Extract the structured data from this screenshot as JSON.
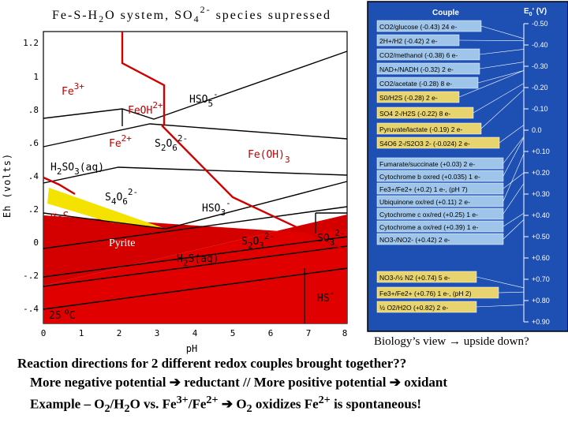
{
  "pourbaix": {
    "title": "Fe-S-H2O system, SO4 2- species supressed",
    "title_main": "Fe-S-H",
    "title_sub2": "2",
    "title_mid": "O system, SO",
    "title_sub4": "4",
    "title_sup": "2-",
    "title_end": " species supressed",
    "ylabel": "Eh (volts)",
    "xlabel": "pH",
    "y_ticks": [
      "1.2",
      "1",
      ".8",
      ".6",
      ".4",
      ".2",
      "0",
      "-.2",
      "-.4"
    ],
    "x_ticks": [
      "0",
      "1",
      "2",
      "3",
      "4",
      "5",
      "6",
      "7",
      "8"
    ],
    "temperature": "25 °C",
    "temp_num": "25",
    "temp_deg": "o",
    "temp_c": "C",
    "species": {
      "fe3": {
        "base": "Fe",
        "sup": "3+"
      },
      "feoh": {
        "base": "FeOH",
        "sup": "2+"
      },
      "hso5": {
        "base": "HSO",
        "sub": "5",
        "sup": "-"
      },
      "fe2": {
        "base": "Fe",
        "sup": "2+"
      },
      "s2o6": {
        "base": "S",
        "sub1": "2",
        "mid": "O",
        "sub2": "6",
        "sup": "2-"
      },
      "feoh3": {
        "base": "Fe(OH)",
        "sub": "3"
      },
      "h2so3": {
        "base": "H",
        "sub1": "2",
        "mid": "SO",
        "sub2": "3",
        "end": "(aq)"
      },
      "s4o6": {
        "base": "S",
        "sub1": "4",
        "mid": "O",
        "sub2": "6",
        "sup": "2-"
      },
      "hso3": {
        "base": "HSO",
        "sub": "3",
        "sup": "-"
      },
      "alphas8": {
        "base": "α-S",
        "sub": "8"
      },
      "pyrite": "Pyrite",
      "s2o3": {
        "base": "S",
        "sub1": "2",
        "mid": "O",
        "sub2": "3",
        "sup": "2-"
      },
      "so3": {
        "base": "SO",
        "sub": "3",
        "sup": "2-"
      },
      "h2s": {
        "base": "H",
        "sub1": "2",
        "end": "S(aq)"
      },
      "hs": {
        "base": "HS",
        "sup": "-"
      }
    }
  },
  "redox_table": {
    "header_couple": "Couple",
    "header_e": "E0' (V)",
    "header_e_base": "E",
    "header_e_sub": "0",
    "header_e_end": "' (V)",
    "couples": [
      "CO2/glucose (-0.43) 24 e-",
      "2H+/H2 (-0.42) 2 e-",
      "CO2/methanol (-0.38) 6 e-",
      "NAD+/NADH (-0.32) 2 e-",
      "CO2/acetate (-0.28) 8 e-",
      "S0/H2S (-0.28) 2 e-",
      "SO4 2-/H2S (-0.22) 8 e-",
      "Pyruvate/lactate (-0.19) 2 e-",
      "S4O6 2-/S2O3 2- (-0.024) 2 e-",
      "Fumarate/succinate (+0.03) 2 e-",
      "Cytochrome b oxred (+0.035) 1 e-",
      "Fe3+/Fe2+ (+0.2) 1 e-, (pH 7)",
      "Ubiquinone ox/red (+0.11) 2 e-",
      "Cytochrome c ox/red (+0.25) 1 e-",
      "Cytochrome a ox/red (+0.39) 1 e-",
      "NO3-/NO2- (+0.42) 2 e-",
      "NO3-/½ N2 (+0.74) 5 e-",
      "Fe3+/Fe2+ (+0.76) 1 e-, (pH 2)",
      "½ O2/H2O (+0.82) 2 e-"
    ],
    "scale": [
      "-0.50",
      "-0.40",
      "-0.30",
      "-0.20",
      "-0.10",
      "0.0",
      "+0.10",
      "+0.20",
      "+0.30",
      "+0.40",
      "+0.50",
      "+0.60",
      "+0.70",
      "+0.80",
      "+0.90"
    ],
    "note": "Biology’s view → upside down?"
  },
  "caption": {
    "line1": "Reaction directions for 2 different redox couples brought together??",
    "line2_a": "More negative potential ",
    "line2_b": " reductant // More positive potential ",
    "line2_c": " oxidant",
    "line3_a": "Example – O",
    "line3_b": "2",
    "line3_c": "/H",
    "line3_d": "2",
    "line3_e": "O vs. Fe",
    "line3_f": "3+",
    "line3_g": "/Fe",
    "line3_h": "2+",
    "line3_i": " ",
    "line3_j": " O",
    "line3_k": "2",
    "line3_l": " oxidizes Fe",
    "line3_m": "2+",
    "line3_n": " is spontaneous!"
  },
  "colors": {
    "red": "#e00000",
    "dark_red": "#c80000",
    "yellow": "#f4e200",
    "table_bg": "#1e50b4",
    "table_bg2": "#2a5cc0",
    "row_blue": "#9fc6ea",
    "row_yellow": "#e8d46e"
  }
}
